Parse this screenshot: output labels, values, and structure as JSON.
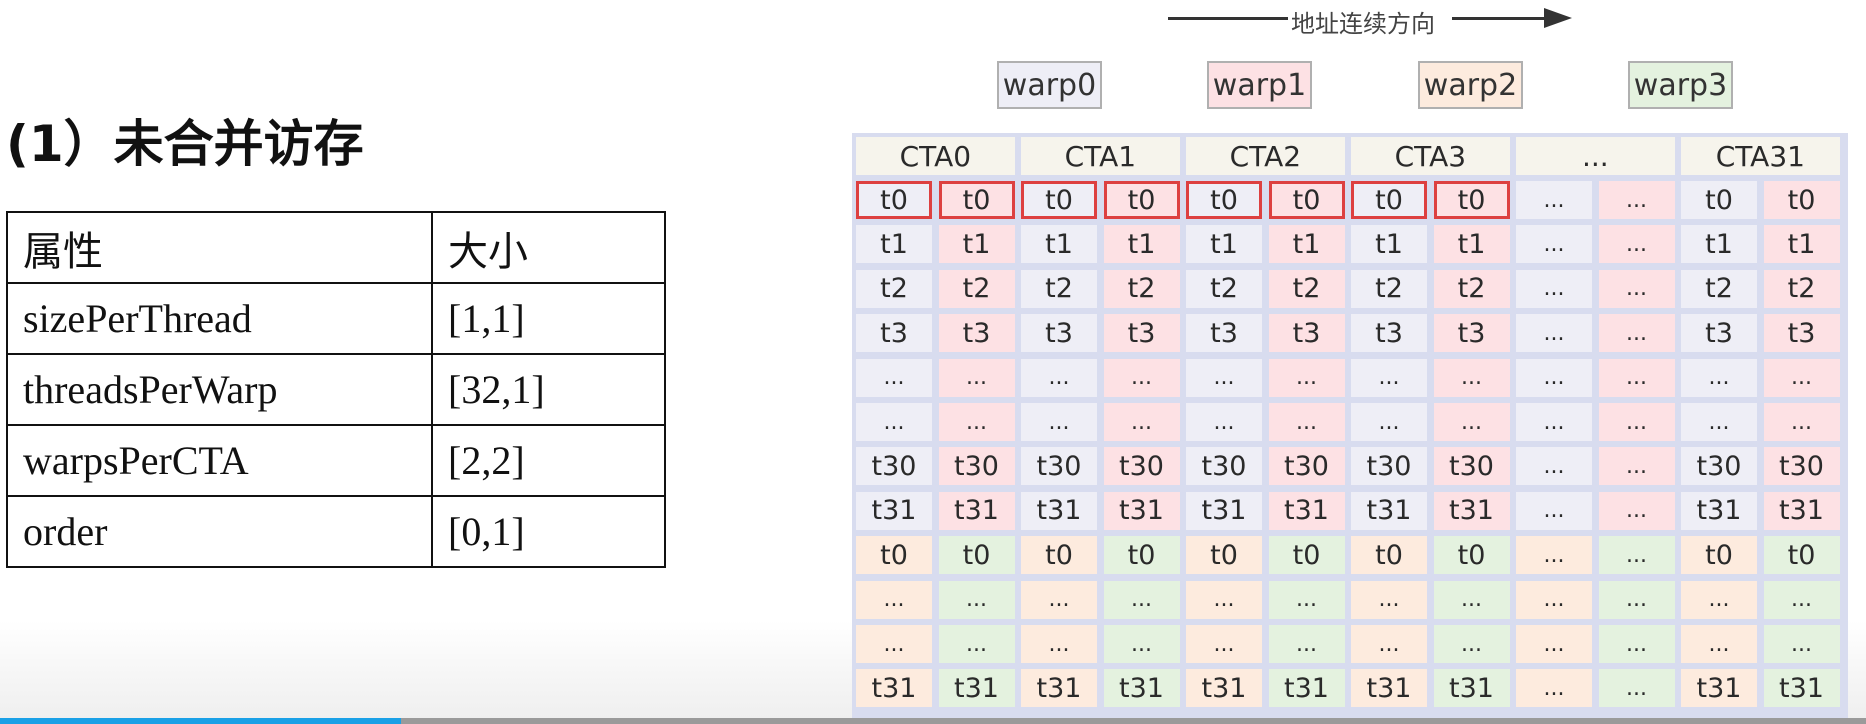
{
  "title": "(1）未合并访存",
  "table": {
    "headers": [
      "属性",
      "大小"
    ],
    "rows": [
      [
        "sizePerThread",
        "[1,1]"
      ],
      [
        "threadsPerWarp",
        "[32,1]"
      ],
      [
        "warpsPerCTA",
        "[2,2]"
      ],
      [
        "order",
        "[0,1]"
      ]
    ]
  },
  "diagram": {
    "arrow_label": "地址连续方向",
    "warps": [
      "warp0",
      "warp1",
      "warp2",
      "warp3"
    ],
    "warp_colors": {
      "warp0": "#eeeef6",
      "warp1": "#fde1e4",
      "warp2": "#fdebde",
      "warp3": "#e4f2df"
    },
    "highlight_color": "#dd4040",
    "cta_headers": [
      "CTA0",
      "CTA1",
      "CTA2",
      "CTA3",
      "...",
      "CTA31"
    ],
    "row_labels": [
      "t0",
      "t1",
      "t2",
      "t3",
      "...",
      "...",
      "t30",
      "t31",
      "t0",
      "...",
      "...",
      "t31"
    ],
    "ellipsis": "...",
    "highlighted_row": 0,
    "highlighted_columns": 8
  },
  "video_progress": 0.215
}
